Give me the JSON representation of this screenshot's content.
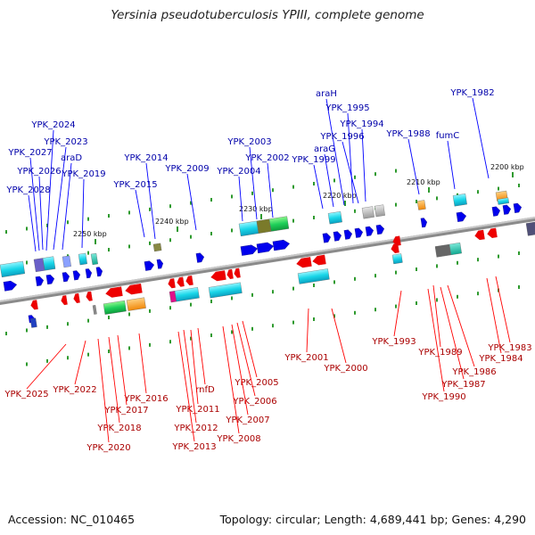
{
  "title": "Yersinia pseudotuberculosis YPIII, complete genome",
  "footer": {
    "accession": "Accession: NC_010465",
    "summary": "Topology: circular; Length: 4,689,441 bp; Genes: 4,290"
  },
  "colors": {
    "forward": "#1a1aa8",
    "forward_fill": "#0000ee",
    "reverse": "#dd1111",
    "reverse_fill": "#ee0000",
    "axis": "#777777"
  },
  "scale_ticks": [
    {
      "label": "2250 kbp"
    },
    {
      "label": "2240 kbp"
    },
    {
      "label": "2230 kbp"
    },
    {
      "label": "2220 kbp"
    },
    {
      "label": "2210 kbp"
    },
    {
      "label": "2200 kbp"
    }
  ],
  "top_labels": [
    {
      "text": "YPK_2024"
    },
    {
      "text": "YPK_2023"
    },
    {
      "text": "YPK_2027"
    },
    {
      "text": "araD"
    },
    {
      "text": "YPK_2026"
    },
    {
      "text": "YPK_2019"
    },
    {
      "text": "YPK_2028"
    },
    {
      "text": "YPK_2014"
    },
    {
      "text": "YPK_2015"
    },
    {
      "text": "YPK_2009"
    },
    {
      "text": "YPK_2003"
    },
    {
      "text": "YPK_2002"
    },
    {
      "text": "YPK_2004"
    },
    {
      "text": "YPK_1999"
    },
    {
      "text": "araG"
    },
    {
      "text": "araH"
    },
    {
      "text": "YPK_1995"
    },
    {
      "text": "YPK_1994"
    },
    {
      "text": "YPK_1996"
    },
    {
      "text": "YPK_1988"
    },
    {
      "text": "fumC"
    },
    {
      "text": "YPK_1982"
    }
  ],
  "bottom_labels": [
    {
      "text": "YPK_2025"
    },
    {
      "text": "YPK_2022"
    },
    {
      "text": "YPK_2016"
    },
    {
      "text": "YPK_2017"
    },
    {
      "text": "YPK_2018"
    },
    {
      "text": "YPK_2020"
    },
    {
      "text": "rnfD"
    },
    {
      "text": "YPK_2011"
    },
    {
      "text": "YPK_2012"
    },
    {
      "text": "YPK_2013"
    },
    {
      "text": "YPK_2005"
    },
    {
      "text": "YPK_2006"
    },
    {
      "text": "YPK_2007"
    },
    {
      "text": "YPK_2008"
    },
    {
      "text": "YPK_2001"
    },
    {
      "text": "YPK_2000"
    },
    {
      "text": "YPK_1993"
    },
    {
      "text": "YPK_1989"
    },
    {
      "text": "YPK_1990"
    },
    {
      "text": "YPK_1987"
    },
    {
      "text": "YPK_1986"
    },
    {
      "text": "YPK_1984"
    },
    {
      "text": "YPK_1983"
    }
  ]
}
